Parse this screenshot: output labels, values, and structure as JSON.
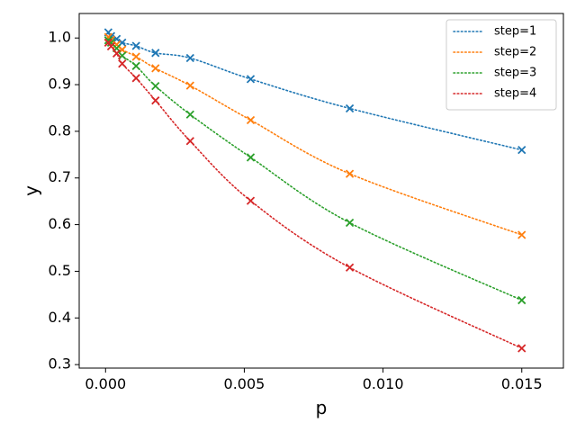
{
  "chart_data": {
    "type": "line",
    "title": "",
    "xlabel": "p",
    "ylabel": "y",
    "xlim": [
      -0.00095,
      0.0165
    ],
    "ylim": [
      0.2925,
      1.0525
    ],
    "x_ticks": [
      0.0,
      0.005,
      0.01,
      0.015
    ],
    "x_tick_labels": [
      "0.000",
      "0.005",
      "0.010",
      "0.015"
    ],
    "y_ticks": [
      0.3,
      0.4,
      0.5,
      0.6,
      0.7,
      0.8,
      0.9,
      1.0
    ],
    "y_tick_labels": [
      "0.3",
      "0.4",
      "0.5",
      "0.6",
      "0.7",
      "0.8",
      "0.9",
      "1.0"
    ],
    "grid": false,
    "legend_position": "top-right",
    "x": [
      0.0001,
      0.0002,
      0.0004,
      0.0006,
      0.0011,
      0.0018,
      0.00305,
      0.00523,
      0.0088,
      0.015
    ],
    "series": [
      {
        "name": "step=1",
        "color": "#1f77b4",
        "values": [
          1.012,
          1.004,
          0.998,
          0.99,
          0.983,
          0.968,
          0.957,
          0.912,
          0.849,
          0.76
        ]
      },
      {
        "name": "step=2",
        "color": "#ff7f0e",
        "values": [
          1.002,
          0.996,
          0.986,
          0.975,
          0.96,
          0.935,
          0.898,
          0.824,
          0.709,
          0.578
        ]
      },
      {
        "name": "step=3",
        "color": "#2ca02c",
        "values": [
          0.995,
          0.99,
          0.978,
          0.962,
          0.94,
          0.897,
          0.836,
          0.744,
          0.604,
          0.438
        ]
      },
      {
        "name": "step=4",
        "color": "#d62728",
        "values": [
          0.99,
          0.982,
          0.967,
          0.945,
          0.914,
          0.866,
          0.779,
          0.651,
          0.508,
          0.335
        ]
      }
    ]
  }
}
